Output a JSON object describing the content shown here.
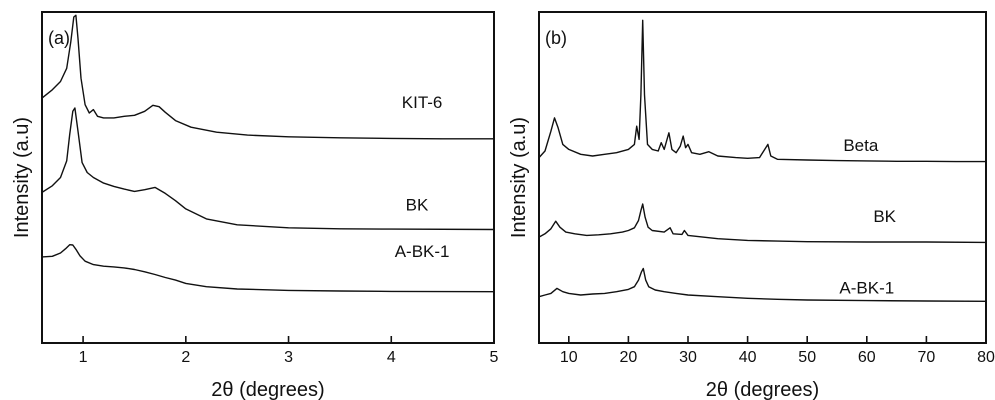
{
  "chart_data": [
    {
      "type": "line",
      "panel_label": "(a)",
      "xlabel": "2θ (degrees)",
      "ylabel": "Intensity (a.u)",
      "xlim": [
        0.6,
        5
      ],
      "ylim": [
        0,
        1
      ],
      "x_ticks": [
        1,
        2,
        3,
        4,
        5
      ],
      "x_tick_labels": [
        "1",
        "2",
        "3",
        "4",
        "5"
      ],
      "y_ticks_shown": false,
      "grid": false,
      "series": [
        {
          "name": "KIT-6",
          "label_x": 4.3,
          "label_y": 0.71,
          "points": [
            [
              0.6,
              0.74
            ],
            [
              0.7,
              0.765
            ],
            [
              0.78,
              0.79
            ],
            [
              0.84,
              0.83
            ],
            [
              0.88,
              0.91
            ],
            [
              0.91,
              0.985
            ],
            [
              0.93,
              0.99
            ],
            [
              0.95,
              0.92
            ],
            [
              0.98,
              0.8
            ],
            [
              1.02,
              0.72
            ],
            [
              1.06,
              0.695
            ],
            [
              1.1,
              0.705
            ],
            [
              1.14,
              0.685
            ],
            [
              1.2,
              0.68
            ],
            [
              1.3,
              0.68
            ],
            [
              1.4,
              0.685
            ],
            [
              1.5,
              0.688
            ],
            [
              1.6,
              0.7
            ],
            [
              1.68,
              0.718
            ],
            [
              1.74,
              0.714
            ],
            [
              1.8,
              0.697
            ],
            [
              1.9,
              0.672
            ],
            [
              2.05,
              0.652
            ],
            [
              2.3,
              0.637
            ],
            [
              2.6,
              0.628
            ],
            [
              3.0,
              0.623
            ],
            [
              3.5,
              0.62
            ],
            [
              4.0,
              0.618
            ],
            [
              4.5,
              0.617
            ],
            [
              5.0,
              0.617
            ]
          ]
        },
        {
          "name": "BK",
          "label_x": 4.25,
          "label_y": 0.4,
          "points": [
            [
              0.6,
              0.455
            ],
            [
              0.7,
              0.475
            ],
            [
              0.78,
              0.5
            ],
            [
              0.84,
              0.55
            ],
            [
              0.87,
              0.63
            ],
            [
              0.9,
              0.7
            ],
            [
              0.92,
              0.71
            ],
            [
              0.95,
              0.64
            ],
            [
              0.99,
              0.545
            ],
            [
              1.04,
              0.515
            ],
            [
              1.1,
              0.5
            ],
            [
              1.2,
              0.483
            ],
            [
              1.3,
              0.473
            ],
            [
              1.4,
              0.465
            ],
            [
              1.5,
              0.458
            ],
            [
              1.6,
              0.463
            ],
            [
              1.7,
              0.47
            ],
            [
              1.8,
              0.452
            ],
            [
              1.9,
              0.43
            ],
            [
              2.0,
              0.405
            ],
            [
              2.2,
              0.375
            ],
            [
              2.5,
              0.357
            ],
            [
              3.0,
              0.348
            ],
            [
              3.5,
              0.345
            ],
            [
              4.0,
              0.344
            ],
            [
              5.0,
              0.343
            ]
          ]
        },
        {
          "name": "A-BK-1",
          "label_x": 4.3,
          "label_y": 0.26,
          "points": [
            [
              0.6,
              0.26
            ],
            [
              0.7,
              0.262
            ],
            [
              0.78,
              0.272
            ],
            [
              0.83,
              0.285
            ],
            [
              0.87,
              0.297
            ],
            [
              0.9,
              0.296
            ],
            [
              0.93,
              0.283
            ],
            [
              0.97,
              0.263
            ],
            [
              1.02,
              0.247
            ],
            [
              1.1,
              0.237
            ],
            [
              1.2,
              0.232
            ],
            [
              1.3,
              0.23
            ],
            [
              1.4,
              0.227
            ],
            [
              1.5,
              0.222
            ],
            [
              1.6,
              0.215
            ],
            [
              1.7,
              0.207
            ],
            [
              1.8,
              0.198
            ],
            [
              1.9,
              0.19
            ],
            [
              2.0,
              0.18
            ],
            [
              2.2,
              0.17
            ],
            [
              2.5,
              0.163
            ],
            [
              3.0,
              0.159
            ],
            [
              3.5,
              0.157
            ],
            [
              4.0,
              0.156
            ],
            [
              5.0,
              0.155
            ]
          ]
        }
      ]
    },
    {
      "type": "line",
      "panel_label": "(b)",
      "xlabel": "2θ (degrees)",
      "ylabel": "Intensity (a.u)",
      "xlim": [
        5,
        80
      ],
      "ylim": [
        0,
        1
      ],
      "x_ticks": [
        10,
        20,
        30,
        40,
        50,
        60,
        70,
        80
      ],
      "x_tick_labels": [
        "10",
        "20",
        "30",
        "40",
        "50",
        "60",
        "70",
        "80"
      ],
      "y_ticks_shown": false,
      "grid": false,
      "series": [
        {
          "name": "Beta",
          "label_x": 59,
          "label_y": 0.58,
          "points": [
            [
              5,
              0.56
            ],
            [
              6,
              0.58
            ],
            [
              7,
              0.64
            ],
            [
              7.6,
              0.68
            ],
            [
              8.2,
              0.65
            ],
            [
              9,
              0.6
            ],
            [
              10,
              0.585
            ],
            [
              12,
              0.57
            ],
            [
              14,
              0.565
            ],
            [
              16,
              0.57
            ],
            [
              18,
              0.575
            ],
            [
              20,
              0.585
            ],
            [
              21,
              0.6
            ],
            [
              21.4,
              0.655
            ],
            [
              21.8,
              0.615
            ],
            [
              22.1,
              0.75
            ],
            [
              22.4,
              0.975
            ],
            [
              22.7,
              0.75
            ],
            [
              23.2,
              0.6
            ],
            [
              24,
              0.585
            ],
            [
              25,
              0.58
            ],
            [
              25.5,
              0.605
            ],
            [
              26,
              0.585
            ],
            [
              26.8,
              0.635
            ],
            [
              27.3,
              0.585
            ],
            [
              28,
              0.575
            ],
            [
              28.7,
              0.595
            ],
            [
              29.2,
              0.625
            ],
            [
              29.6,
              0.59
            ],
            [
              30,
              0.6
            ],
            [
              30.6,
              0.575
            ],
            [
              32,
              0.57
            ],
            [
              33.5,
              0.578
            ],
            [
              35,
              0.565
            ],
            [
              38,
              0.56
            ],
            [
              40,
              0.558
            ],
            [
              42,
              0.56
            ],
            [
              43.4,
              0.6
            ],
            [
              43.9,
              0.565
            ],
            [
              45,
              0.555
            ],
            [
              50,
              0.553
            ],
            [
              55,
              0.551
            ],
            [
              60,
              0.55
            ],
            [
              65,
              0.549
            ],
            [
              70,
              0.549
            ],
            [
              75,
              0.548
            ],
            [
              80,
              0.548
            ]
          ]
        },
        {
          "name": "BK",
          "label_x": 63,
          "label_y": 0.365,
          "points": [
            [
              5,
              0.32
            ],
            [
              6,
              0.33
            ],
            [
              7,
              0.345
            ],
            [
              7.8,
              0.368
            ],
            [
              8.5,
              0.35
            ],
            [
              9.5,
              0.335
            ],
            [
              11,
              0.33
            ],
            [
              13,
              0.325
            ],
            [
              15,
              0.327
            ],
            [
              17,
              0.33
            ],
            [
              19,
              0.335
            ],
            [
              20,
              0.34
            ],
            [
              21,
              0.348
            ],
            [
              21.7,
              0.37
            ],
            [
              22.1,
              0.4
            ],
            [
              22.4,
              0.42
            ],
            [
              22.8,
              0.38
            ],
            [
              23.3,
              0.35
            ],
            [
              24,
              0.34
            ],
            [
              26,
              0.335
            ],
            [
              27,
              0.348
            ],
            [
              27.5,
              0.33
            ],
            [
              29,
              0.328
            ],
            [
              29.4,
              0.34
            ],
            [
              30,
              0.325
            ],
            [
              35,
              0.315
            ],
            [
              40,
              0.31
            ],
            [
              45,
              0.308
            ],
            [
              50,
              0.306
            ],
            [
              60,
              0.305
            ],
            [
              70,
              0.305
            ],
            [
              80,
              0.304
            ]
          ]
        },
        {
          "name": "A-BK-1",
          "label_x": 60,
          "label_y": 0.15,
          "points": [
            [
              5,
              0.14
            ],
            [
              6,
              0.145
            ],
            [
              7,
              0.15
            ],
            [
              8,
              0.165
            ],
            [
              9,
              0.155
            ],
            [
              10,
              0.15
            ],
            [
              12,
              0.145
            ],
            [
              14,
              0.148
            ],
            [
              16,
              0.15
            ],
            [
              18,
              0.155
            ],
            [
              20,
              0.162
            ],
            [
              21,
              0.17
            ],
            [
              21.7,
              0.19
            ],
            [
              22.2,
              0.215
            ],
            [
              22.5,
              0.225
            ],
            [
              22.9,
              0.19
            ],
            [
              23.4,
              0.17
            ],
            [
              24.5,
              0.16
            ],
            [
              26,
              0.155
            ],
            [
              28,
              0.15
            ],
            [
              30,
              0.145
            ],
            [
              35,
              0.14
            ],
            [
              40,
              0.135
            ],
            [
              45,
              0.132
            ],
            [
              50,
              0.13
            ],
            [
              60,
              0.128
            ],
            [
              70,
              0.127
            ],
            [
              80,
              0.126
            ]
          ]
        }
      ]
    }
  ]
}
